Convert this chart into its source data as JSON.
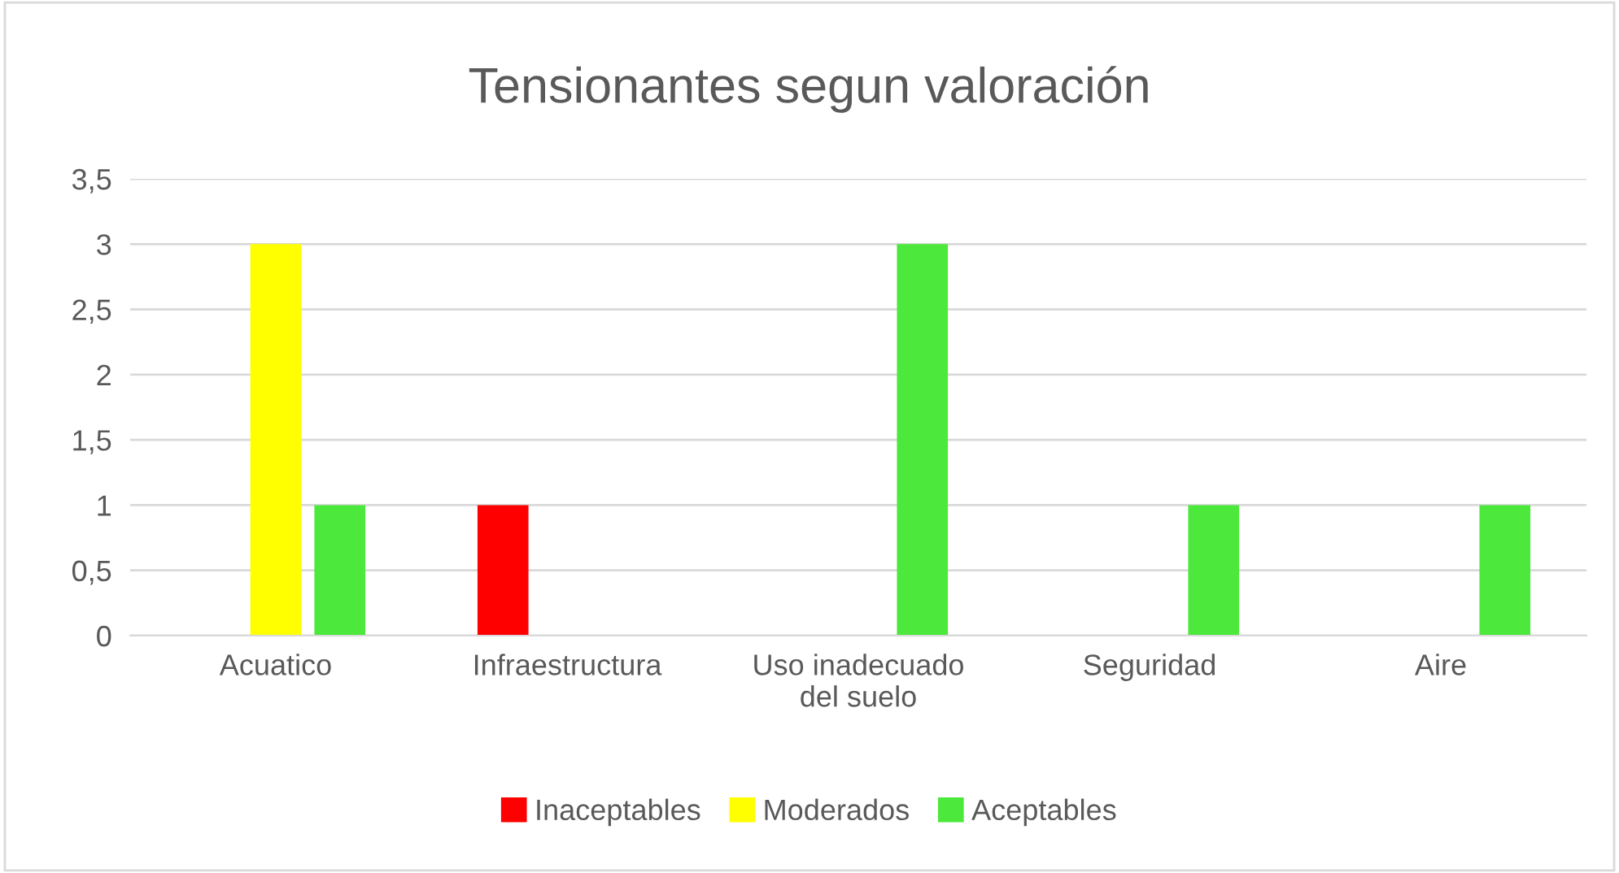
{
  "chart_data": {
    "type": "bar",
    "title": "Tensionantes segun valoración",
    "categories": [
      "Acuatico",
      "Infraestructura",
      "Uso inadecuado\ndel suelo",
      "Seguridad",
      "Aire"
    ],
    "series": [
      {
        "name": "Inaceptables",
        "color": "#ff0000",
        "values": [
          0,
          1,
          0,
          0,
          0
        ]
      },
      {
        "name": "Moderados",
        "color": "#ffff00",
        "values": [
          3,
          0,
          0,
          0,
          0
        ]
      },
      {
        "name": "Aceptables",
        "color": "#4ce83c",
        "values": [
          1,
          0,
          3,
          1,
          1
        ]
      }
    ],
    "ylim": [
      0,
      3.5
    ],
    "yticks": [
      0,
      {
        "value": 0.5,
        "label": "0,5"
      },
      1,
      {
        "value": 1.5,
        "label": "1,5"
      },
      2,
      {
        "value": 2.5,
        "label": "2,5"
      },
      3,
      {
        "value": 3.5,
        "label": "3,5"
      }
    ],
    "grid": "y",
    "legend": "bottom"
  }
}
